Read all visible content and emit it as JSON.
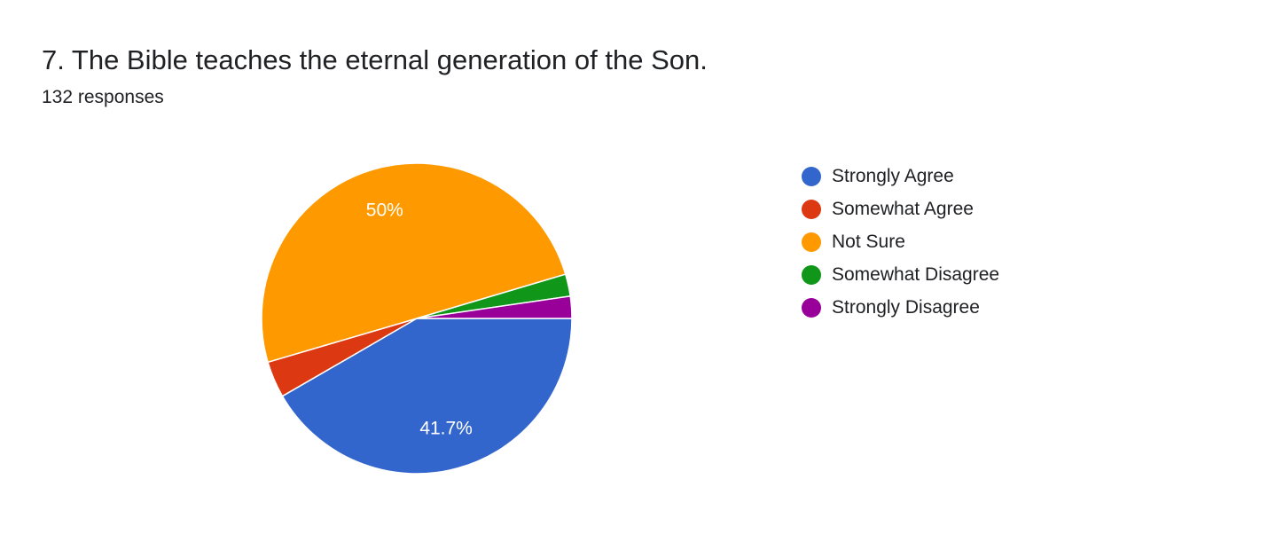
{
  "header": {
    "title": "7. The Bible teaches the eternal generation of the Son.",
    "responses": "132 responses"
  },
  "chart_data": {
    "type": "pie",
    "categories": [
      "Strongly Agree",
      "Somewhat Agree",
      "Not Sure",
      "Somewhat Disagree",
      "Strongly Disagree"
    ],
    "values": [
      41.7,
      3.8,
      50,
      2.3,
      2.3
    ],
    "counts": [
      55,
      5,
      66,
      3,
      3
    ],
    "colors": [
      "#3366cc",
      "#dc3912",
      "#ff9900",
      "#109618",
      "#990099"
    ],
    "data_labels": [
      "41.7%",
      "",
      "50%",
      "",
      ""
    ],
    "legend_position": "right",
    "start": "3 o'clock",
    "direction": "clockwise"
  }
}
